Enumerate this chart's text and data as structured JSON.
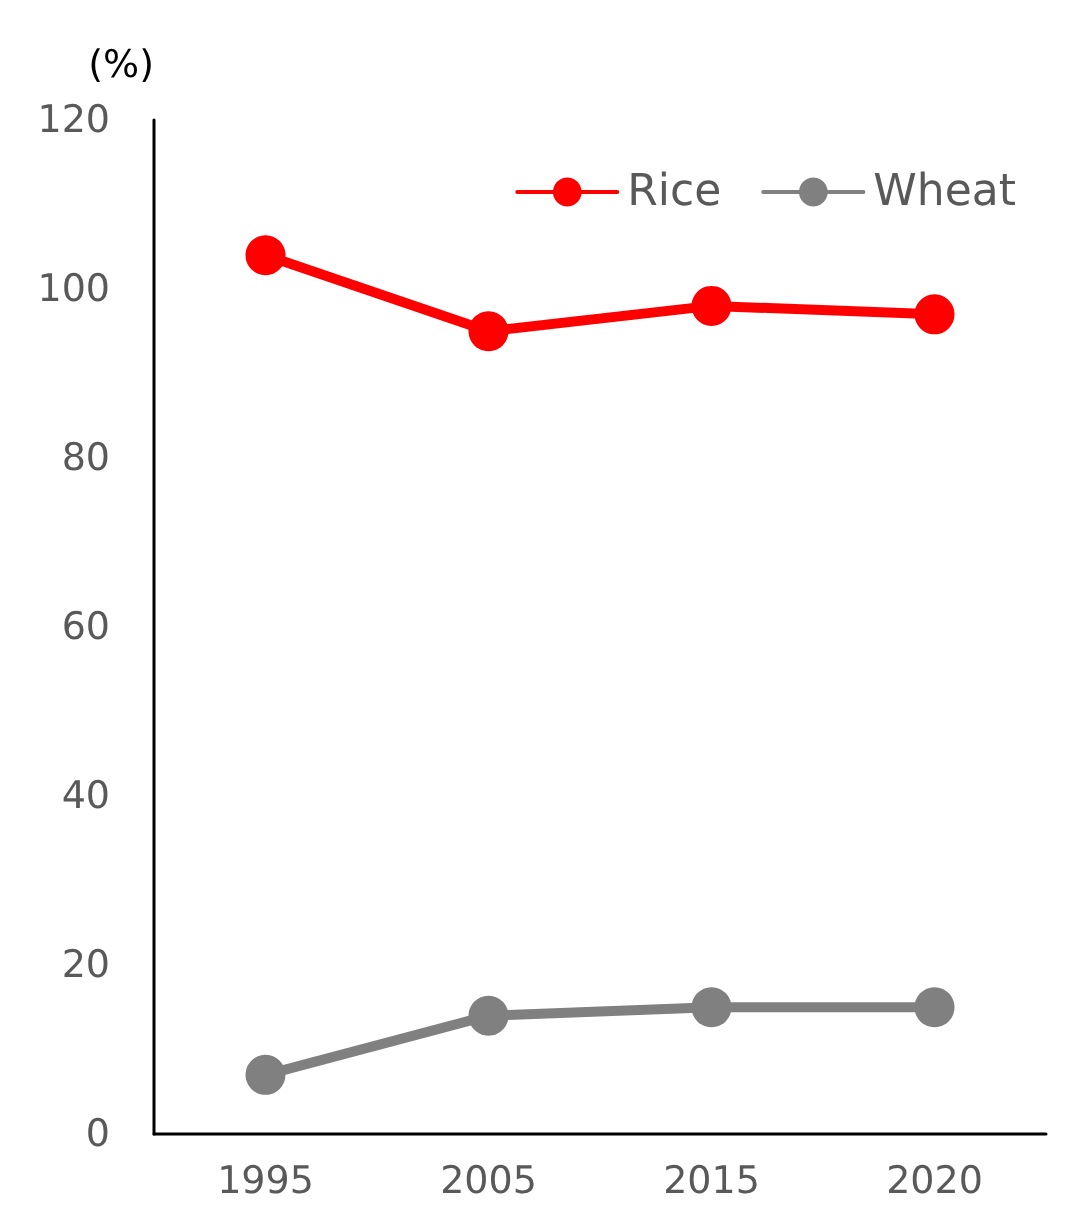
{
  "chart_data": {
    "type": "line",
    "ylabel": "(%)",
    "categories": [
      "1995",
      "2005",
      "2015",
      "2020"
    ],
    "series": [
      {
        "name": "Rice",
        "color": "#ff0000",
        "values": [
          104,
          95,
          98,
          97
        ]
      },
      {
        "name": "Wheat",
        "color": "#808080",
        "values": [
          7,
          14,
          15,
          15
        ]
      }
    ],
    "ylim": [
      0,
      120
    ],
    "yticks": [
      0,
      20,
      40,
      60,
      80,
      100,
      120
    ],
    "grid": false,
    "legend": "top right",
    "marker": "circle",
    "line_style": "solid"
  }
}
